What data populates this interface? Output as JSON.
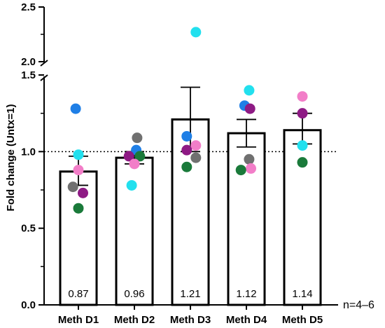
{
  "chart_data": {
    "type": "bar",
    "ylabel": "Fold change (Untx=1)",
    "xlabel": "",
    "note": "n=4–6",
    "categories": [
      "Meth D1",
      "Meth D2",
      "Meth D3",
      "Meth D4",
      "Meth D5"
    ],
    "values": [
      0.87,
      0.96,
      1.21,
      1.12,
      1.14
    ],
    "value_labels": [
      "0.87",
      "0.96",
      "1.21",
      "1.12",
      "1.14"
    ],
    "error_bars": [
      {
        "low": 0.78,
        "high": 0.97
      },
      {
        "low": 0.92,
        "high": 1.0
      },
      {
        "low": 1.0,
        "high": 1.42
      },
      {
        "low": 1.03,
        "high": 1.21
      },
      {
        "low": 1.05,
        "high": 1.25
      }
    ],
    "reference_line": {
      "y": 1.0,
      "style": "dotted"
    },
    "axis_break": {
      "from": 1.5,
      "to": 2.0
    },
    "ylim": [
      0,
      2.5
    ],
    "y_ticks": [
      0.0,
      0.5,
      1.0,
      1.5,
      2.0,
      2.5
    ],
    "y_tick_labels": [
      "0.0",
      "0.5",
      "1.0",
      "1.5",
      "2.0",
      "2.5"
    ],
    "point_colors": {
      "blue": "#1f7fe6",
      "cyan": "#22e0ee",
      "pink": "#f27ec8",
      "gray": "#707070",
      "purple": "#8e1a84",
      "green": "#1a7a3a"
    },
    "points": [
      [
        {
          "color": "blue",
          "y": 1.28,
          "dx": -0.15
        },
        {
          "color": "cyan",
          "y": 0.98,
          "dx": 0.0
        },
        {
          "color": "pink",
          "y": 0.88,
          "dx": 0.0
        },
        {
          "color": "gray",
          "y": 0.77,
          "dx": -0.3
        },
        {
          "color": "purple",
          "y": 0.73,
          "dx": 0.25
        },
        {
          "color": "green",
          "y": 0.63,
          "dx": 0.0
        }
      ],
      [
        {
          "color": "gray",
          "y": 1.09,
          "dx": 0.15
        },
        {
          "color": "blue",
          "y": 1.01,
          "dx": 0.1
        },
        {
          "color": "purple",
          "y": 0.97,
          "dx": -0.3
        },
        {
          "color": "green",
          "y": 0.97,
          "dx": 0.3
        },
        {
          "color": "pink",
          "y": 0.92,
          "dx": 0.0
        },
        {
          "color": "cyan",
          "y": 0.78,
          "dx": -0.15
        }
      ],
      [
        {
          "color": "cyan",
          "y": 2.27,
          "dx": 0.3
        },
        {
          "color": "blue",
          "y": 1.1,
          "dx": -0.2
        },
        {
          "color": "pink",
          "y": 1.04,
          "dx": 0.3
        },
        {
          "color": "purple",
          "y": 1.01,
          "dx": -0.2
        },
        {
          "color": "gray",
          "y": 0.96,
          "dx": 0.3
        },
        {
          "color": "green",
          "y": 0.9,
          "dx": -0.2
        }
      ],
      [
        {
          "color": "cyan",
          "y": 1.4,
          "dx": 0.15
        },
        {
          "color": "blue",
          "y": 1.3,
          "dx": -0.1
        },
        {
          "color": "purple",
          "y": 1.28,
          "dx": 0.2
        },
        {
          "color": "gray",
          "y": 0.95,
          "dx": 0.15
        },
        {
          "color": "pink",
          "y": 0.89,
          "dx": 0.25
        },
        {
          "color": "green",
          "y": 0.88,
          "dx": -0.3
        }
      ],
      [
        {
          "color": "pink",
          "y": 1.36,
          "dx": 0.0
        },
        {
          "color": "purple",
          "y": 1.25,
          "dx": 0.0
        },
        {
          "color": "cyan",
          "y": 1.04,
          "dx": 0.0
        },
        {
          "color": "green",
          "y": 0.93,
          "dx": 0.0
        }
      ]
    ]
  }
}
